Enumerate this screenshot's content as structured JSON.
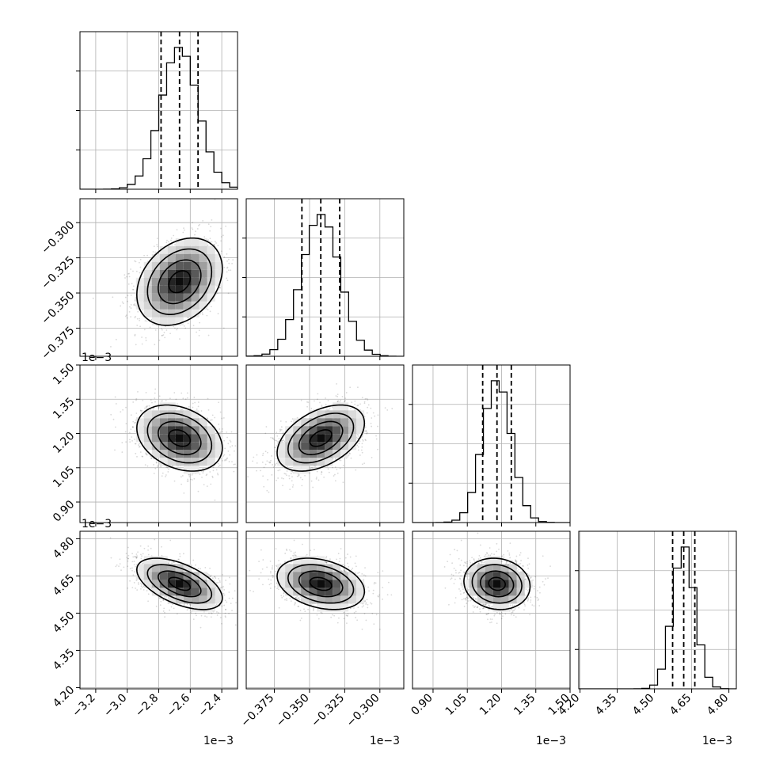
{
  "chart_data": {
    "type": "corner",
    "n_params": 4,
    "bins": 20,
    "quantiles": [
      0.16,
      0.5,
      0.84
    ],
    "grid": true,
    "parameters": [
      {
        "center": -0.002668,
        "sigma": 0.000118,
        "range": [
          -0.0033,
          -0.0023
        ],
        "ticks": [
          -3.2,
          -3.0,
          -2.8,
          -2.6,
          -2.4
        ],
        "tick_labels": [
          "−3.2",
          "−3.0",
          "−2.8",
          "−2.6",
          "−2.4"
        ],
        "offset": "1e−3"
      },
      {
        "center": -0.000342,
        "sigma": 1.35e-05,
        "range": [
          -0.000395,
          -0.000283
        ],
        "ticks": [
          -0.375,
          -0.35,
          -0.325,
          -0.3
        ],
        "tick_labels": [
          "−0.375",
          "−0.350",
          "−0.325",
          "−0.300"
        ],
        "offset": "1e−3"
      },
      {
        "center": 0.00118,
        "sigma": 6.3e-05,
        "range": [
          0.00081,
          0.0015
        ],
        "ticks": [
          0.9,
          1.05,
          1.2,
          1.35,
          1.5
        ],
        "tick_labels": [
          "0.90",
          "1.05",
          "1.20",
          "1.35",
          "1.50"
        ],
        "offset": "1e−3"
      },
      {
        "center": 0.004618,
        "sigma": 4.5e-05,
        "range": [
          0.004195,
          0.00483
        ],
        "ticks": [
          4.2,
          4.35,
          4.5,
          4.65,
          4.8
        ],
        "tick_labels": [
          "4.20",
          "4.35",
          "4.50",
          "4.65",
          "4.80"
        ],
        "offset": "1e−3"
      }
    ],
    "correlations": {
      "1,0": 0.3,
      "2,0": -0.3,
      "2,1": 0.45,
      "3,0": -0.55,
      "3,1": -0.3,
      "3,2": -0.1
    },
    "histogram_peak_fraction": [
      1.0,
      1.0,
      1.0,
      1.0
    ]
  }
}
